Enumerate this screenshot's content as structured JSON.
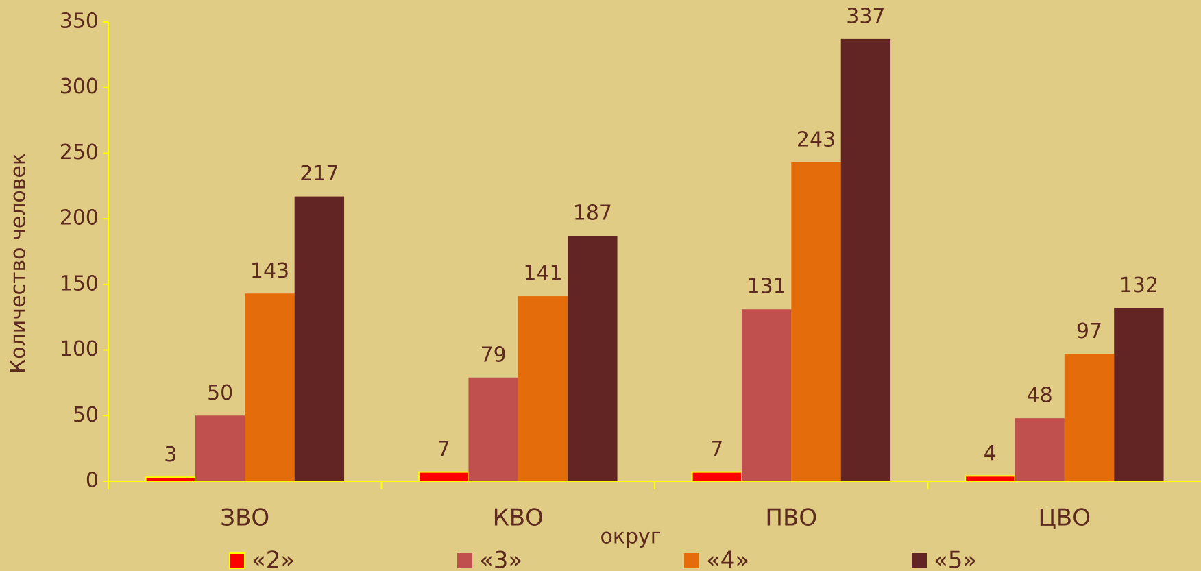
{
  "chart_data": {
    "type": "bar",
    "x_label": "округ",
    "y_label": "Количество человек",
    "categories": [
      "ЗВО",
      "КВО",
      "ПВО",
      "ЦВО"
    ],
    "series": [
      {
        "name": "«2»",
        "color": "#ff0000",
        "values": [
          3,
          7,
          7,
          4
        ]
      },
      {
        "name": "«3»",
        "color": "#c0504d",
        "values": [
          50,
          79,
          131,
          48
        ]
      },
      {
        "name": "«4»",
        "color": "#e46c0a",
        "values": [
          143,
          141,
          243,
          97
        ]
      },
      {
        "name": "«5»",
        "color": "#632523",
        "values": [
          217,
          187,
          337,
          132
        ]
      }
    ],
    "ylim": [
      0,
      350
    ],
    "yticks": [
      0,
      50,
      100,
      150,
      200,
      250,
      300,
      350
    ],
    "grid": false,
    "legend": "bottom"
  }
}
